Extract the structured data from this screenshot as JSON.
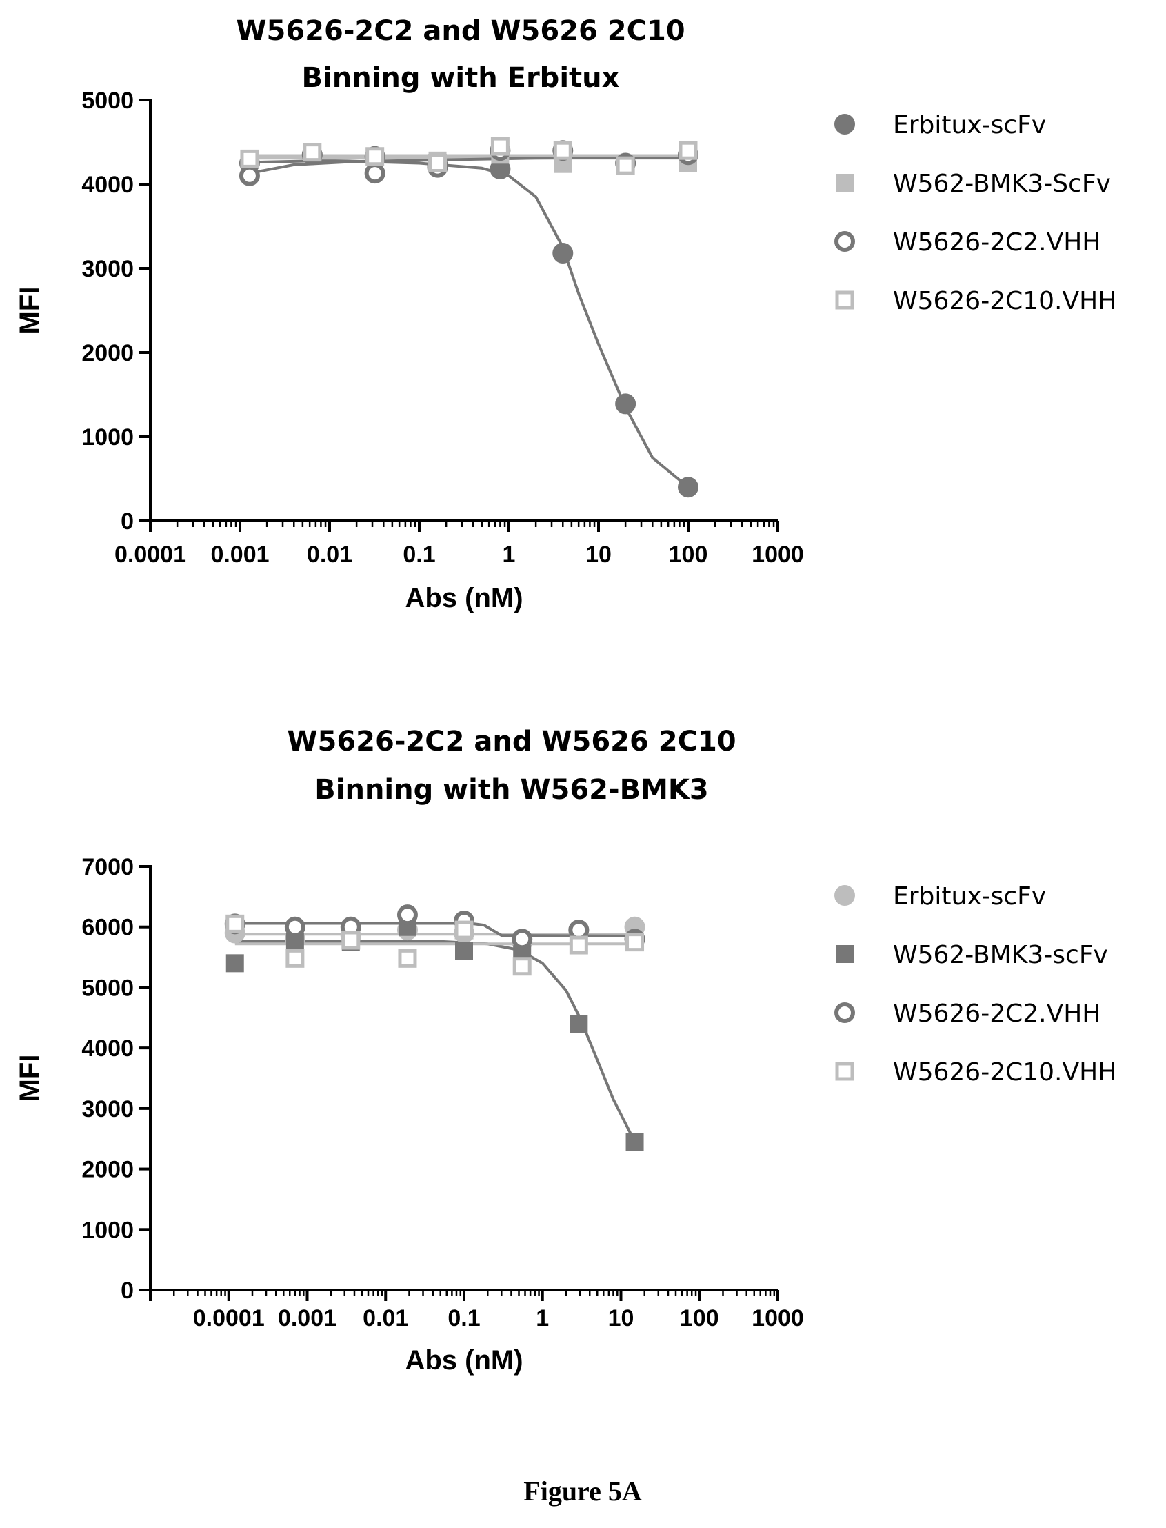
{
  "caption": "Figure 5A",
  "colors": {
    "axis": "#000000",
    "dark_gray": "#777777",
    "light_gray": "#bdbdbd"
  },
  "chart_data": [
    {
      "type": "scatter",
      "title": [
        "W5626-2C2  and W5626  2C10",
        "Binning with Erbitux"
      ],
      "xlabel": "Abs (nM)",
      "ylabel": "MFI",
      "xscale": "log",
      "xlim": [
        0.0001,
        1000
      ],
      "ylim": [
        0,
        5000
      ],
      "xtick_labels": [
        "0.0001",
        "0.001",
        "0.01",
        "0.1",
        "1",
        "10",
        "100",
        "1000"
      ],
      "ytick_labels": [
        "0",
        "1000",
        "2000",
        "3000",
        "4000",
        "5000"
      ],
      "legend_position": "right",
      "series": [
        {
          "name": "Erbitux-scFv",
          "marker": "circle-filled",
          "color": "#777777",
          "x": [
            0.00128,
            0.0064,
            0.032,
            0.16,
            0.8,
            4,
            20,
            100
          ],
          "y": [
            4250,
            4350,
            4330,
            4230,
            4180,
            3180,
            1390,
            400
          ],
          "fit": [
            [
              0.00128,
              4260
            ],
            [
              0.01,
              4280
            ],
            [
              0.1,
              4250
            ],
            [
              0.5,
              4190
            ],
            [
              1,
              4100
            ],
            [
              2,
              3850
            ],
            [
              4,
              3250
            ],
            [
              6,
              2700
            ],
            [
              10,
              2100
            ],
            [
              20,
              1350
            ],
            [
              40,
              750
            ],
            [
              100,
              400
            ]
          ]
        },
        {
          "name": "W562-BMK3-ScFv",
          "marker": "square-filled",
          "color": "#bdbdbd",
          "x": [
            0.00128,
            0.0064,
            0.032,
            0.16,
            0.8,
            4,
            20,
            100
          ],
          "y": [
            4300,
            4380,
            4330,
            4280,
            4350,
            4240,
            4240,
            4250
          ],
          "fit": [
            [
              0.00128,
              4310
            ],
            [
              100,
              4310
            ]
          ]
        },
        {
          "name": "W5626-2C2.VHH",
          "marker": "circle-open",
          "color": "#777777",
          "x": [
            0.00128,
            0.0064,
            0.032,
            0.16,
            0.8,
            4,
            20,
            100
          ],
          "y": [
            4100,
            4350,
            4130,
            4200,
            4400,
            4400,
            4250,
            4350
          ],
          "fit": [
            [
              0.00128,
              4130
            ],
            [
              0.004,
              4230
            ],
            [
              0.02,
              4270
            ],
            [
              0.2,
              4290
            ],
            [
              2,
              4310
            ],
            [
              100,
              4320
            ]
          ]
        },
        {
          "name": "W5626-2C10.VHH",
          "marker": "square-open",
          "color": "#bdbdbd",
          "x": [
            0.00128,
            0.0064,
            0.032,
            0.16,
            0.8,
            4,
            20,
            100
          ],
          "y": [
            4300,
            4380,
            4330,
            4250,
            4450,
            4400,
            4220,
            4400
          ],
          "fit": [
            [
              0.00128,
              4340
            ],
            [
              100,
              4340
            ]
          ]
        }
      ]
    },
    {
      "type": "scatter",
      "title": [
        "W5626-2C2  and W5626  2C10",
        "Binning with W562-BMK3"
      ],
      "xlabel": "Abs (nM)",
      "ylabel": "MFI",
      "xscale": "log",
      "xlim": [
        1e-05,
        1000
      ],
      "ylim": [
        0,
        7000
      ],
      "xtick_labels": [
        "0.0001",
        "0.001",
        "0.01",
        "0.1",
        "1",
        "10",
        "100",
        "1000"
      ],
      "xtick_positions": [
        0.0001,
        0.001,
        0.01,
        0.1,
        1,
        10,
        100,
        1000
      ],
      "ytick_labels": [
        "0",
        "1000",
        "2000",
        "3000",
        "4000",
        "5000",
        "6000",
        "7000"
      ],
      "legend_position": "right",
      "series": [
        {
          "name": "Erbitux-scFv",
          "marker": "circle-filled",
          "color": "#bdbdbd",
          "x": [
            0.00012,
            0.0007,
            0.0036,
            0.019,
            0.1,
            0.55,
            2.9,
            15
          ],
          "y": [
            5900,
            5800,
            5850,
            5950,
            5900,
            5750,
            5950,
            6000
          ],
          "fit": [
            [
              0.00012,
              5880
            ],
            [
              15,
              5880
            ]
          ]
        },
        {
          "name": "W562-BMK3-scFv",
          "marker": "square-filled",
          "color": "#777777",
          "x": [
            0.00012,
            0.0007,
            0.0036,
            0.019,
            0.1,
            0.55,
            2.9,
            15
          ],
          "y": [
            5400,
            5750,
            5750,
            6000,
            5600,
            5550,
            4400,
            2450
          ],
          "fit": [
            [
              0.00012,
              5760
            ],
            [
              0.05,
              5760
            ],
            [
              0.2,
              5720
            ],
            [
              0.5,
              5620
            ],
            [
              1,
              5400
            ],
            [
              2,
              4950
            ],
            [
              3,
              4500
            ],
            [
              5,
              3800
            ],
            [
              8,
              3150
            ],
            [
              15,
              2450
            ]
          ]
        },
        {
          "name": "W5626-2C2.VHH",
          "marker": "circle-open",
          "color": "#777777",
          "x": [
            0.00012,
            0.0007,
            0.0036,
            0.019,
            0.1,
            0.55,
            2.9,
            15
          ],
          "y": [
            6050,
            6000,
            6000,
            6200,
            6100,
            5800,
            5950,
            5800
          ],
          "fit": [
            [
              0.00012,
              6060
            ],
            [
              0.12,
              6060
            ],
            [
              0.18,
              6030
            ],
            [
              0.3,
              5860
            ],
            [
              15,
              5850
            ]
          ]
        },
        {
          "name": "W5626-2C10.VHH",
          "marker": "square-open",
          "color": "#bdbdbd",
          "x": [
            0.00012,
            0.0007,
            0.0036,
            0.019,
            0.1,
            0.55,
            2.9,
            15
          ],
          "y": [
            6050,
            5480,
            5780,
            5480,
            5950,
            5350,
            5700,
            5750
          ],
          "fit": [
            [
              0.00012,
              5720
            ],
            [
              15,
              5720
            ]
          ]
        }
      ]
    }
  ]
}
